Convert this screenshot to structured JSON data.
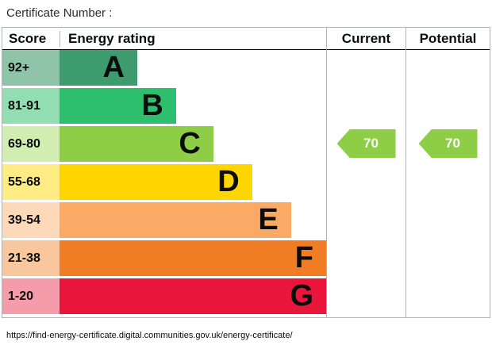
{
  "page": {
    "certificate_label": "Certificate Number :",
    "footer_url": "https://find-energy-certificate.digital.communities.gov.uk/energy-certificate/"
  },
  "table": {
    "headers": {
      "score": "Score",
      "rating": "Energy rating",
      "current": "Current",
      "potential": "Potential"
    }
  },
  "chart_data": {
    "type": "bar",
    "subtype": "epc-energy-rating-chart",
    "title": "Energy rating",
    "bands": [
      {
        "score": "92+",
        "letter": "A",
        "bar_color": "#3d9b6e",
        "score_tint": "#8fc4a9",
        "width": "24%"
      },
      {
        "score": "81-91",
        "letter": "B",
        "bar_color": "#2ebf6e",
        "score_tint": "#93ddb3",
        "width": "36%"
      },
      {
        "score": "69-80",
        "letter": "C",
        "bar_color": "#8dce46",
        "score_tint": "#d2edb2",
        "width": "47.5%"
      },
      {
        "score": "55-68",
        "letter": "D",
        "bar_color": "#ffd500",
        "score_tint": "#ffec84",
        "width": "59.5%"
      },
      {
        "score": "39-54",
        "letter": "E",
        "bar_color": "#fbaa65",
        "score_tint": "#fdd9b9",
        "width": "71.5%"
      },
      {
        "score": "21-38",
        "letter": "F",
        "bar_color": "#f07d23",
        "score_tint": "#f8c79d",
        "width": "83.5%"
      },
      {
        "score": "1-20",
        "letter": "G",
        "bar_color": "#e9153b",
        "score_tint": "#f59cab",
        "width": "95.5%"
      }
    ],
    "current": {
      "value": "70",
      "band": "C",
      "arrow_color": "#8dce46"
    },
    "potential": {
      "value": "70",
      "band": "C",
      "arrow_color": "#8dce46"
    }
  }
}
